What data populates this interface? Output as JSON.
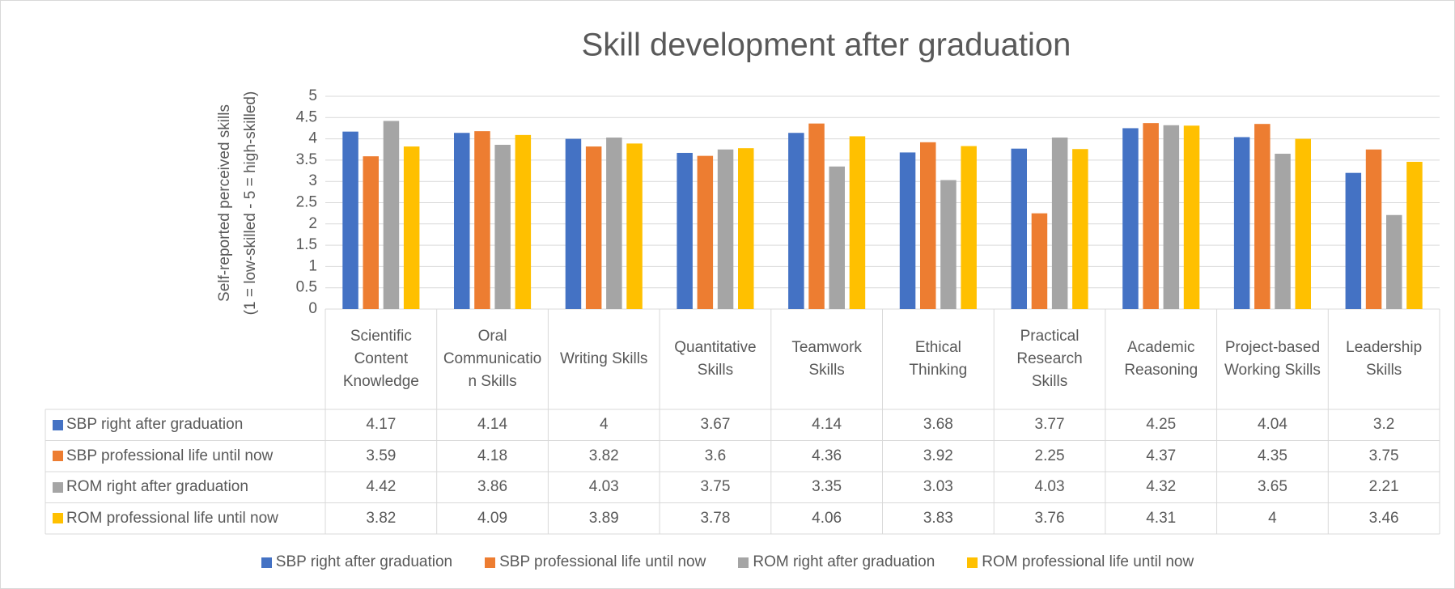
{
  "chart_data": {
    "type": "bar",
    "title": "Skill development after graduation",
    "y_label": [
      "Self-reported perceived skills",
      "(1 = low-skilled - 5 = high-skilled)"
    ],
    "categories": [
      "Scientific Content Knowledge",
      "Oral Communication Skills",
      "Writing Skills",
      "Quantitative Skills",
      "Teamwork Skills",
      "Ethical Thinking",
      "Practical Research Skills",
      "Academic Reasoning",
      "Project-based Working Skills",
      "Leadership Skills"
    ],
    "series": [
      {
        "name": "SBP right after graduation",
        "color": "#4472c4",
        "values": [
          4.17,
          4.14,
          4,
          3.67,
          4.14,
          3.68,
          3.77,
          4.25,
          4.04,
          3.2
        ]
      },
      {
        "name": "SBP professional life until now",
        "color": "#ed7d31",
        "values": [
          3.59,
          4.18,
          3.82,
          3.6,
          4.36,
          3.92,
          2.25,
          4.37,
          4.35,
          3.75
        ]
      },
      {
        "name": "ROM right after graduation",
        "color": "#a5a5a5",
        "values": [
          4.42,
          3.86,
          4.03,
          3.75,
          3.35,
          3.03,
          4.03,
          4.32,
          3.65,
          2.21
        ]
      },
      {
        "name": "ROM professional life until now",
        "color": "#ffc000",
        "values": [
          3.82,
          4.09,
          3.89,
          3.78,
          4.06,
          3.83,
          3.76,
          4.31,
          4,
          3.46
        ]
      }
    ],
    "ylim": [
      0,
      5
    ],
    "yticks": [
      0,
      0.5,
      1,
      1.5,
      2,
      2.5,
      3,
      3.5,
      4,
      4.5,
      5
    ],
    "grid": true,
    "data_table": true,
    "legend": "bottom"
  }
}
